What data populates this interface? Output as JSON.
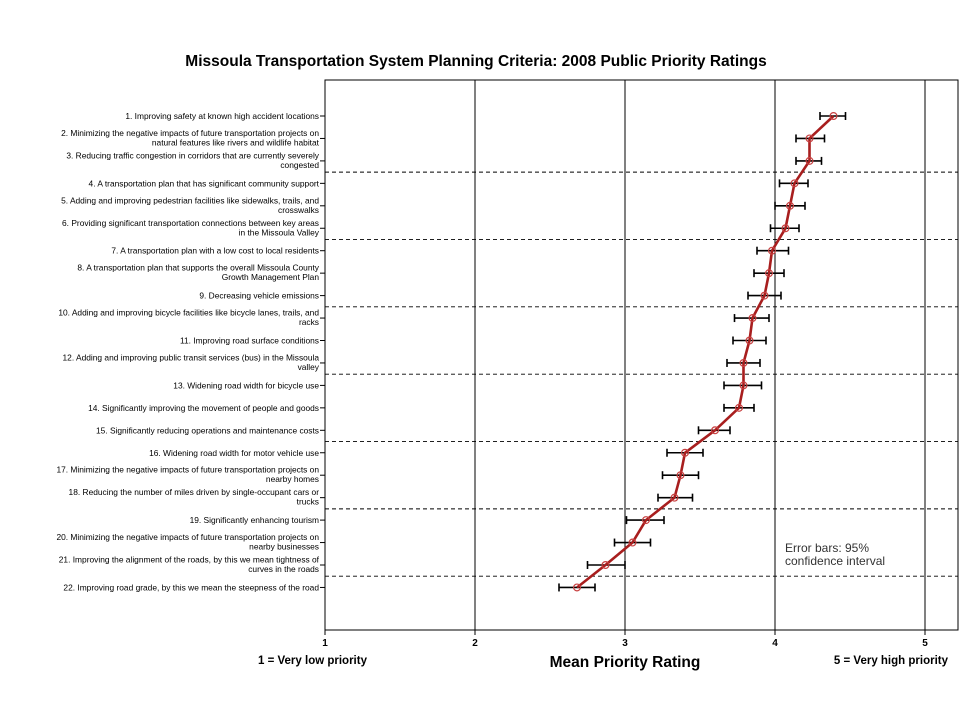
{
  "chart_data": {
    "type": "line",
    "orientation": "horizontal",
    "title": "Missoula Transportation System Planning Criteria: 2008 Public Priority Ratings",
    "xlabel": "Mean Priority Rating",
    "xlim": [
      1,
      5.2
    ],
    "xticks": [
      "1",
      "2",
      "3",
      "4",
      "5"
    ],
    "x_low_note": "1 = Very low priority",
    "x_high_note": "5 = Very high priority",
    "annotation": [
      "Error bars: 95%",
      "confidence interval"
    ],
    "grid": "vertical solid lines at integer ratings; horizontal dashed separators every 3 criteria",
    "colors": {
      "line": "#a81e1e",
      "marker": "#c84040",
      "error_bar": "#000000"
    },
    "categories": [
      [
        "1. Improving safety at known high accident locations"
      ],
      [
        "2. Minimizing the negative impacts of future transportation projects on",
        "natural features like rivers and wildlife habitat"
      ],
      [
        "3. Reducing traffic congestion in corridors that are currently severely",
        "congested"
      ],
      [
        "4. A transportation plan that has significant community support"
      ],
      [
        "5. Adding and improving pedestrian facilities like sidewalks, trails, and",
        "crosswalks"
      ],
      [
        "6. Providing significant transportation connections between key areas",
        "in the Missoula Valley"
      ],
      [
        "7. A transportation plan with a low cost to local residents"
      ],
      [
        "8. A transportation plan that supports the overall Missoula County",
        "Growth Management Plan"
      ],
      [
        "9. Decreasing vehicle emissions"
      ],
      [
        "10. Adding and improving bicycle facilities like bicycle lanes, trails, and",
        "racks"
      ],
      [
        "11. Improving road surface conditions"
      ],
      [
        "12. Adding and improving public transit services (bus) in the Missoula",
        "valley"
      ],
      [
        "13. Widening road width for bicycle use"
      ],
      [
        "14. Significantly improving the movement of people and goods"
      ],
      [
        "15. Significantly reducing operations and maintenance costs"
      ],
      [
        "16. Widening road width for motor vehicle use"
      ],
      [
        "17. Minimizing the negative impacts of future transportation projects on",
        "nearby homes"
      ],
      [
        "18. Reducing the number of miles driven by single-occupant cars or",
        "trucks"
      ],
      [
        "19. Significantly enhancing tourism"
      ],
      [
        "20. Minimizing the negative impacts of future transportation projects on",
        "nearby businesses"
      ],
      [
        "21. Improving the alignment of the roads, by this we mean tightness of",
        "curves in the roads"
      ],
      [
        "22. Improving road grade, by this we mean the steepness of the road"
      ]
    ],
    "means": [
      4.39,
      4.23,
      4.23,
      4.13,
      4.1,
      4.07,
      3.98,
      3.96,
      3.93,
      3.85,
      3.83,
      3.79,
      3.79,
      3.76,
      3.6,
      3.4,
      3.37,
      3.33,
      3.14,
      3.05,
      2.87,
      2.68
    ],
    "ci_low": [
      4.3,
      4.14,
      4.14,
      4.03,
      4.0,
      3.97,
      3.88,
      3.86,
      3.82,
      3.73,
      3.72,
      3.68,
      3.66,
      3.66,
      3.49,
      3.28,
      3.25,
      3.22,
      3.01,
      2.93,
      2.75,
      2.56
    ],
    "ci_high": [
      4.47,
      4.33,
      4.31,
      4.22,
      4.2,
      4.16,
      4.09,
      4.06,
      4.04,
      3.96,
      3.94,
      3.9,
      3.91,
      3.86,
      3.7,
      3.52,
      3.49,
      3.45,
      3.26,
      3.17,
      3.0,
      2.8
    ]
  }
}
